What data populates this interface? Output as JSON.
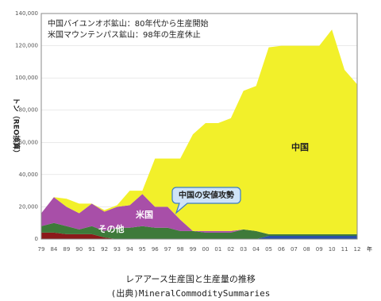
{
  "chart_data": {
    "type": "stacked-area",
    "annotations": [
      "中国バイユンオボ鉱山：80年代から生産開始",
      "米国マウンテンパス鉱山：98年の生産休止"
    ],
    "callout": "中国の安値攻勢",
    "y_label": "トン（REO換算）",
    "x_unit": "年",
    "caption": "レアアース生産国と生産量の推移",
    "source": "(出典)MineralCommoditySummaries",
    "categories": [
      "79",
      "84",
      "89",
      "90",
      "91",
      "92",
      "93",
      "94",
      "95",
      "96",
      "97",
      "98",
      "99",
      "00",
      "01",
      "02",
      "03",
      "04",
      "05",
      "06",
      "07",
      "08",
      "09",
      "10",
      "11",
      "12"
    ],
    "series": [
      {
        "color": "#8b1a1a",
        "values": [
          4000,
          4000,
          3000,
          3000,
          3000,
          1000,
          0,
          0,
          0,
          0,
          0,
          0,
          0,
          0,
          0,
          0,
          0,
          0,
          0,
          0,
          0,
          0,
          0,
          0,
          0,
          0
        ]
      },
      {
        "color": "#2a4fa8",
        "values": [
          0,
          0,
          0,
          0,
          0,
          0,
          0,
          0,
          0,
          0,
          0,
          0,
          0,
          0,
          0,
          0,
          0,
          0,
          2000,
          2000,
          2000,
          2000,
          2000,
          2000,
          2000,
          2000
        ]
      },
      {
        "name": "その他",
        "color": "#3e7a3a",
        "values": [
          4000,
          6000,
          5000,
          3000,
          5000,
          4000,
          7000,
          7000,
          8000,
          7000,
          7000,
          5000,
          5000,
          4000,
          4000,
          4000,
          6000,
          5000,
          1000,
          1000,
          1000,
          1000,
          1000,
          1000,
          1000,
          1000
        ]
      },
      {
        "name": "米国",
        "color": "#a84fa8",
        "values": [
          8000,
          16000,
          12000,
          10000,
          14000,
          12000,
          13000,
          14000,
          20000,
          13000,
          13000,
          7000,
          0,
          1000,
          1000,
          1000,
          0,
          0,
          0,
          0,
          0,
          0,
          0,
          0,
          0,
          0
        ]
      },
      {
        "name": "中国",
        "color": "#f2f02a",
        "values": [
          0,
          0,
          5000,
          6000,
          0,
          1000,
          1000,
          9000,
          2000,
          30000,
          30000,
          38000,
          60000,
          67000,
          67000,
          70000,
          86000,
          90000,
          116000,
          117000,
          117000,
          117000,
          117000,
          127000,
          102000,
          93000
        ]
      }
    ],
    "ylim": [
      0,
      140000
    ],
    "yticks": [
      0,
      {
        "value": 20000,
        "label": "20,000"
      },
      {
        "value": 40000,
        "label": "40,000"
      },
      {
        "value": 60000,
        "label": "60,000"
      },
      {
        "value": 80000,
        "label": "80,000"
      },
      {
        "value": 100000,
        "label": "100,000"
      },
      {
        "value": 120000,
        "label": "120,000"
      },
      {
        "value": 140000,
        "label": "140,000"
      }
    ],
    "grid": true
  }
}
